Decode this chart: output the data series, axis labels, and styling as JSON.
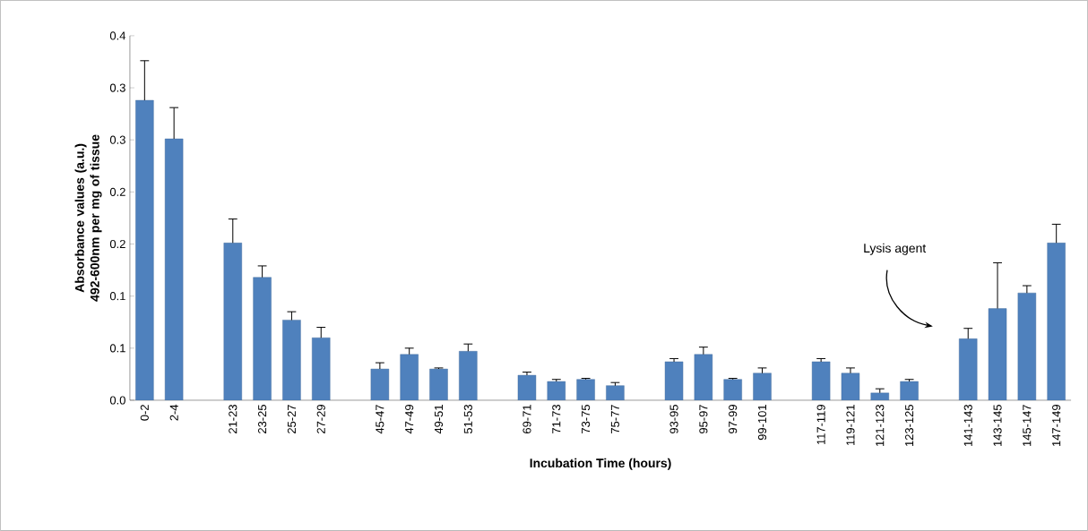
{
  "chart_data": {
    "type": "bar",
    "xlabel": "Incubation Time (hours)",
    "ylabel": "Absorbance values (a.u.) 492-600nm per mg of tissue",
    "categories": [
      "0-2",
      "2-4",
      null,
      "21-23",
      "23-25",
      "25-27",
      "27-29",
      null,
      "45-47",
      "47-49",
      "49-51",
      "51-53",
      null,
      "69-71",
      "71-73",
      "73-75",
      "75-77",
      null,
      "93-95",
      "95-97",
      "97-99",
      "99-101",
      null,
      "117-119",
      "119-121",
      "121-123",
      "123-125",
      null,
      "141-143",
      "143-145",
      "145-147",
      "147-149"
    ],
    "values": [
      0.288,
      0.251,
      null,
      0.151,
      0.118,
      0.077,
      0.06,
      null,
      0.03,
      0.044,
      0.03,
      0.047,
      null,
      0.024,
      0.018,
      0.02,
      0.014,
      null,
      0.037,
      0.044,
      0.02,
      0.026,
      null,
      0.037,
      0.026,
      0.007,
      0.018,
      null,
      0.059,
      0.088,
      0.103,
      0.151
    ],
    "errors": [
      [
        0.288,
        0.326
      ],
      [
        0.251,
        0.281
      ],
      null,
      [
        0.151,
        0.174
      ],
      [
        0.118,
        0.129
      ],
      [
        0.077,
        0.085
      ],
      [
        0.06,
        0.07
      ],
      null,
      [
        0.03,
        0.036
      ],
      [
        0.044,
        0.05
      ],
      [
        0.03,
        0.031
      ],
      [
        0.047,
        0.054
      ],
      null,
      [
        0.024,
        0.027
      ],
      [
        0.018,
        0.02
      ],
      [
        0.02,
        0.021
      ],
      [
        0.014,
        0.017
      ],
      null,
      [
        0.037,
        0.04
      ],
      [
        0.044,
        0.051
      ],
      [
        0.02,
        0.021
      ],
      [
        0.026,
        0.031
      ],
      null,
      [
        0.037,
        0.04
      ],
      [
        0.026,
        0.031
      ],
      [
        0.007,
        0.011
      ],
      [
        0.018,
        0.02
      ],
      null,
      [
        0.059,
        0.069
      ],
      [
        0.088,
        0.132
      ],
      [
        0.103,
        0.11
      ],
      [
        0.151,
        0.169
      ]
    ],
    "color": "#4f81bd",
    "ylim": [
      0,
      0.35
    ],
    "yticks": [
      {
        "value": 0,
        "label": "0.0"
      },
      {
        "value": 0.05,
        "label": "0.1"
      },
      0.1,
      {
        "value": 0.15,
        "label": "0.2"
      },
      0.2,
      {
        "value": 0.25,
        "label": "0.3"
      },
      0.3,
      {
        "value": 0.35,
        "label": "0.4"
      }
    ],
    "annotations": [
      "Lysis agent"
    ],
    "grid": false
  }
}
